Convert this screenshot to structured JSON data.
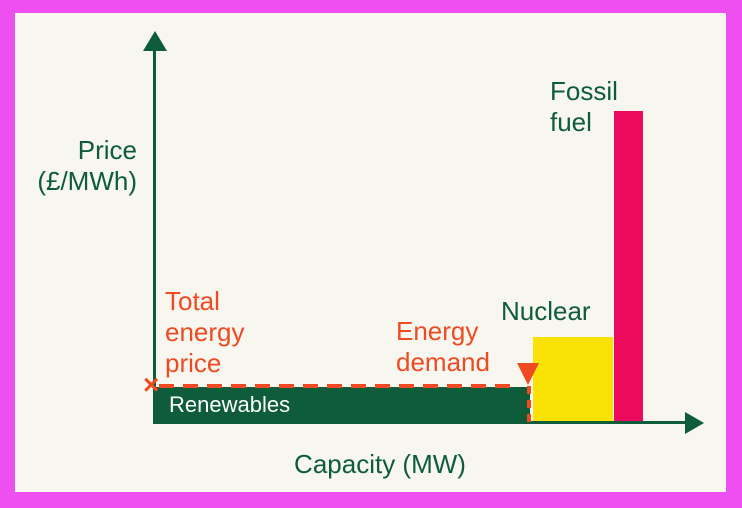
{
  "colors": {
    "border": "#EE4FF1",
    "background": "#F7F6EF",
    "green": "#0E5C39",
    "yellow": "#FAE106",
    "pink": "#EC0A5E",
    "orange": "#EE4B23",
    "bar_text": "#FFFFFF"
  },
  "axes": {
    "y_label": "Price\n(£/MWh)",
    "x_label": "Capacity (MW)"
  },
  "bars": {
    "renewables": {
      "label": "Renewables",
      "color": "#0E5C39"
    },
    "nuclear": {
      "label": "Nuclear",
      "color": "#FAE106"
    },
    "fossil": {
      "label": "Fossil\nfuel",
      "color": "#EC0A5E"
    }
  },
  "annotations": {
    "total_energy_price_label": "Total\nenergy\nprice",
    "energy_demand_label": "Energy\ndemand",
    "price_marker_glyph": "×",
    "price_marker_icon": "x-marker",
    "demand_marker_icon": "triangle-down-marker"
  },
  "chart_data": {
    "type": "bar",
    "subtype": "merit-order-supply-curve",
    "title": "",
    "xlabel": "Capacity (MW)",
    "ylabel": "Price (£/MWh)",
    "numeric_ticks": false,
    "grid": false,
    "legend": false,
    "categories": [
      "Renewables",
      "Nuclear",
      "Fossil fuel"
    ],
    "segments": [
      {
        "label": "Renewables",
        "capacity_pct_of_x_axis": 68,
        "price_pct_of_y_axis": 9,
        "color": "#0E5C39"
      },
      {
        "label": "Nuclear",
        "capacity_pct_of_x_axis": 15,
        "price_pct_of_y_axis": 22,
        "color": "#FAE106"
      },
      {
        "label": "Fossil fuel",
        "capacity_pct_of_x_axis": 5,
        "price_pct_of_y_axis": 80,
        "color": "#EC0A5E"
      }
    ],
    "annotations": [
      {
        "label": "Total energy price",
        "type": "dashed-horizontal-line",
        "color": "#EE4B23",
        "price_pct_of_y_axis": 9.5,
        "marker": "x on y-axis"
      },
      {
        "label": "Energy demand",
        "type": "dashed-vertical-line",
        "color": "#EE4B23",
        "capacity_pct_of_x_axis": 68,
        "marker": "down-triangle at renewables capacity limit"
      }
    ]
  }
}
